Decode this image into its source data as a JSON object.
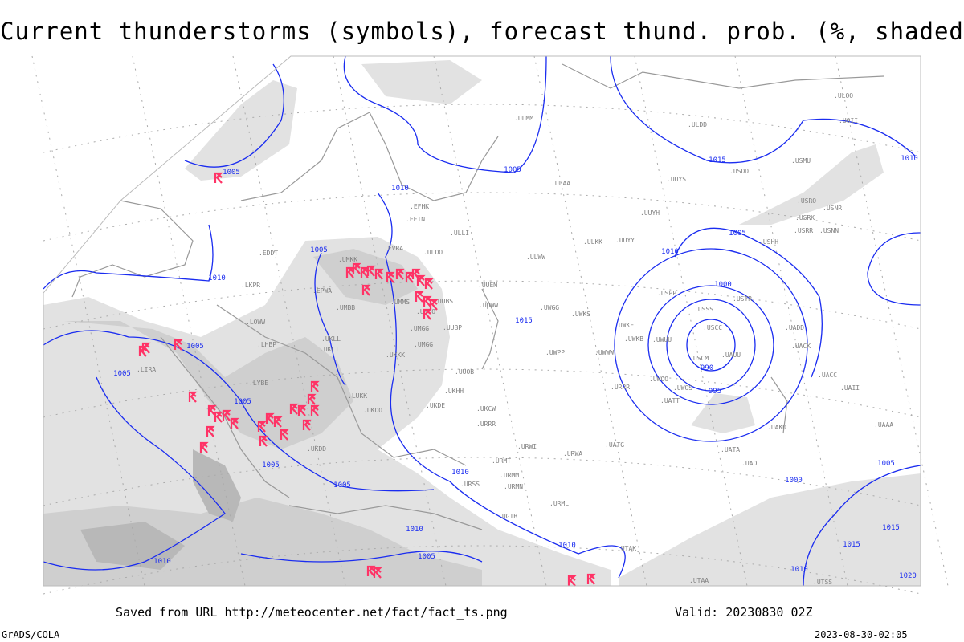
{
  "title": "Current thunderstorms (symbols), forecast thund. prob. (%, shaded)",
  "footer": {
    "saved_from": "Saved from URL http://meteocenter.net/fact/fact_ts.png",
    "valid": "Valid: 20230830 02Z",
    "software": "GrADS/COLA",
    "timestamp": "2023-08-30-02:05"
  },
  "colors": {
    "isobar": "#1a2cf0",
    "storm_symbol": "#ff3366",
    "coastline": "#999999",
    "shade_light": "#e2e2e2",
    "shade_mid": "#cfcfcf",
    "shade_dark": "#b8b8b8",
    "station_label": "#808080"
  },
  "isobar_labels": [
    "1005",
    "1005",
    "1010",
    "1015",
    "1010",
    "1005",
    "1010",
    "1005",
    "1010",
    "1000",
    "1015",
    "990",
    "995",
    "1005",
    "1005",
    "1005",
    "1005",
    "1005",
    "1010",
    "1010",
    "1005",
    "1010",
    "1010",
    "1000",
    "1005",
    "1015",
    "1015",
    "1010",
    "1020"
  ],
  "stations": [
    "ULMM",
    "ULOO",
    "UOII",
    "ULDD",
    "USDD",
    "USMU",
    "ULAA",
    "UUYS",
    "UUYH",
    "ULKK",
    "UUYY",
    "USRO",
    "USRK",
    "USNR",
    "USRR",
    "USNN",
    "USHH",
    "ULWW",
    "EFHK",
    "EETN",
    "ULLI",
    "EVRA",
    "ULOO",
    "UMKK",
    "EDDT",
    "EPWA",
    "UMMS",
    "UMOO",
    "UUBS",
    "UUEM",
    "UUWW",
    "UMGG",
    "UUBP",
    "UWGG",
    "UWKS",
    "UWKE",
    "UWKB",
    "UWUU",
    "USPP",
    "USSS",
    "USTR",
    "USCC",
    "USCM",
    "UAUU",
    "UKKK",
    "UKLL",
    "UKLI",
    "LKPR",
    "LOWW",
    "LHBP",
    "LIRA",
    "LYBE",
    "LUKK",
    "UKHH",
    "UUOB",
    "UKOO",
    "UKDE",
    "UKCW",
    "URRR",
    "URWI",
    "UWPP",
    "UWWW",
    "URRR",
    "UATT",
    "UWOO",
    "UWOS",
    "UATG",
    "URWA",
    "URMT",
    "URMM",
    "URMN",
    "URML",
    "UAKD",
    "UATA",
    "UAOL",
    "UACC",
    "UACK",
    "UADD",
    "UAII",
    "UAAA",
    "UMBB",
    "UMGG",
    "UKDD",
    "URSS",
    "UGTB",
    "UTAK",
    "UTAA",
    "UTSS"
  ]
}
